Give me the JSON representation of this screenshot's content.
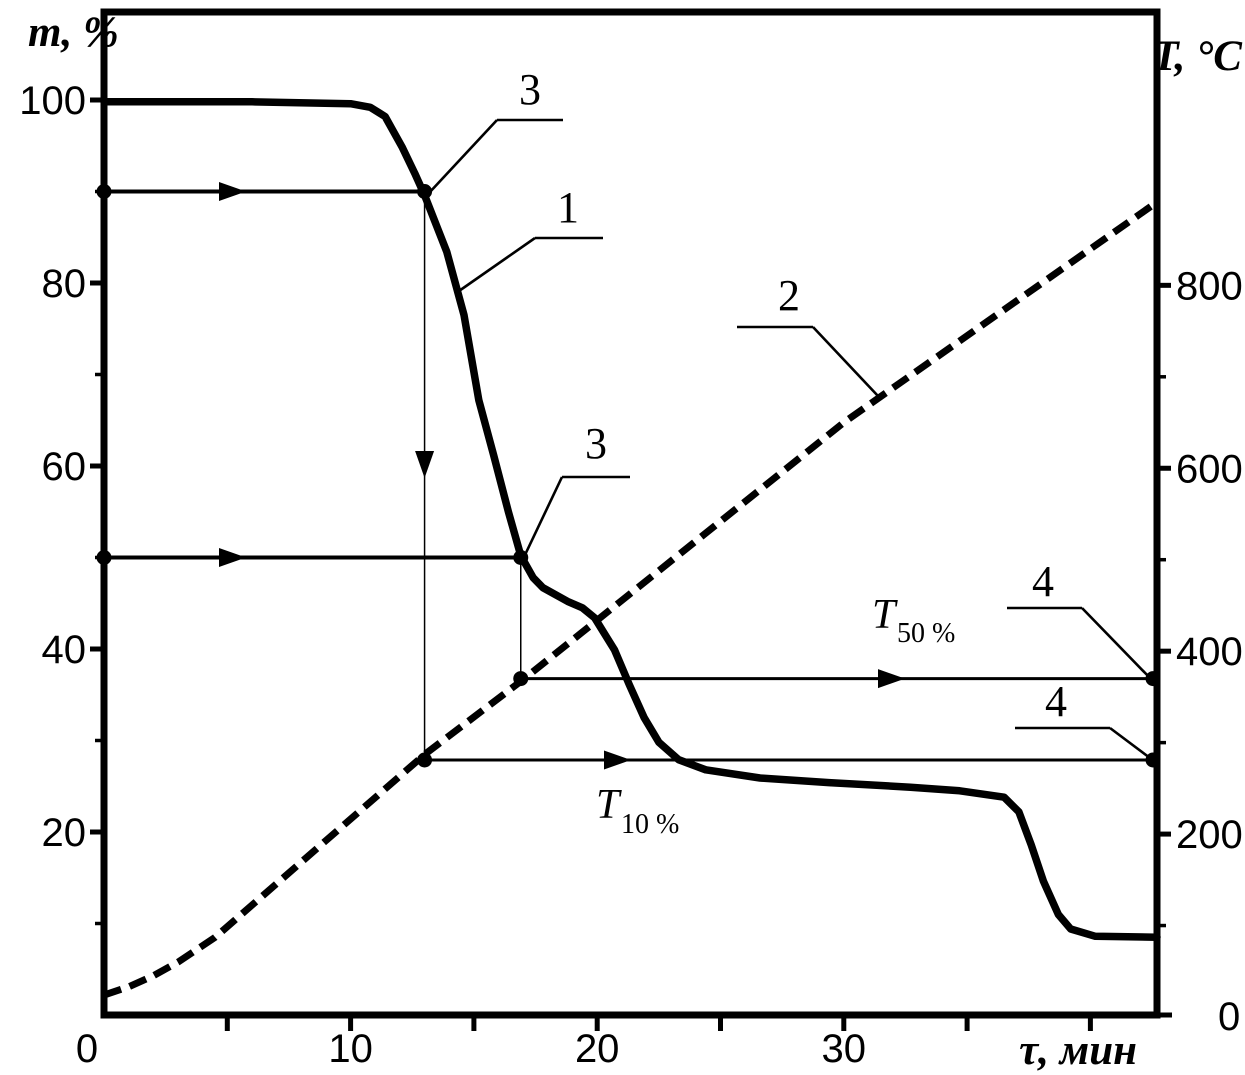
{
  "figure": {
    "background_color": "#ffffff",
    "ink_color": "#000000"
  },
  "chart_data": {
    "type": "line",
    "title": "",
    "xlabel": "τ, мин",
    "ylabel_left": "m, %",
    "ylabel_right": "T, °C",
    "x_range": [
      0,
      42.7
    ],
    "y_left_range": [
      0,
      100
    ],
    "y_right_range": [
      0,
      900
    ],
    "grid": false,
    "legend": "none",
    "axes": {
      "left": {
        "title": "m, %",
        "tick_labels": [
          "100",
          "80",
          "60",
          "40",
          "20"
        ],
        "tick_values": [
          100,
          80,
          60,
          40,
          20
        ],
        "minor_tick_values": [
          90,
          70,
          50,
          30,
          10
        ]
      },
      "right": {
        "title": "T, °C",
        "tick_labels": [
          "800",
          "600",
          "400",
          "200"
        ],
        "tick_values": [
          800,
          600,
          400,
          200
        ],
        "minor_tick_values": [
          700,
          500,
          300,
          100
        ],
        "zero_label": "0"
      },
      "bottom": {
        "title": "τ, мин",
        "tick_values": [
          5,
          10,
          15,
          20,
          25,
          30,
          35,
          40
        ],
        "tick_labels": [
          "10",
          "20",
          "30"
        ],
        "labeled_values": [
          10,
          20,
          30
        ],
        "origin_label": "0"
      }
    },
    "series": [
      {
        "id": "1",
        "name": "mass-curve",
        "line": "solid",
        "y_axis": "left",
        "points": [
          [
            0,
            99.8
          ],
          [
            6,
            99.8
          ],
          [
            10,
            99.6
          ],
          [
            10.8,
            99.2
          ],
          [
            11.4,
            98.2
          ],
          [
            12.1,
            94.8
          ],
          [
            12.6,
            92.0
          ],
          [
            13.0,
            89.6
          ],
          [
            13.9,
            83.4
          ],
          [
            14.6,
            76.5
          ],
          [
            15.2,
            67.2
          ],
          [
            15.8,
            61.2
          ],
          [
            16.4,
            55.0
          ],
          [
            16.9,
            50.2
          ],
          [
            17.4,
            47.8
          ],
          [
            17.8,
            46.7
          ],
          [
            18.8,
            45.2
          ],
          [
            19.4,
            44.5
          ],
          [
            19.9,
            43.4
          ],
          [
            20.7,
            39.9
          ],
          [
            21.3,
            36.1
          ],
          [
            21.9,
            32.5
          ],
          [
            22.5,
            29.8
          ],
          [
            23.3,
            27.9
          ],
          [
            24.4,
            26.8
          ],
          [
            26.6,
            25.9
          ],
          [
            29.4,
            25.4
          ],
          [
            32.7,
            24.9
          ],
          [
            34.7,
            24.5
          ],
          [
            36.5,
            23.8
          ],
          [
            37.1,
            22.2
          ],
          [
            37.6,
            18.6
          ],
          [
            38.1,
            14.6
          ],
          [
            38.7,
            11.0
          ],
          [
            39.2,
            9.4
          ],
          [
            40.2,
            8.6
          ],
          [
            42.7,
            8.5
          ]
        ]
      },
      {
        "id": "2",
        "name": "temperature-curve",
        "line": "dashed",
        "y_axis": "right",
        "points": [
          [
            0,
            24
          ],
          [
            1,
            33
          ],
          [
            2,
            45
          ],
          [
            3,
            60
          ],
          [
            4.5,
            87
          ],
          [
            13,
            287
          ],
          [
            17,
            369
          ],
          [
            30,
            650
          ],
          [
            42.7,
            891
          ]
        ]
      }
    ],
    "annotations": {
      "markers": {
        "mass_10pct_loss": {
          "m_percent": 90,
          "tau_min": 13.0,
          "T_celsius": 281,
          "label_base": "T",
          "label_sub": "10 %"
        },
        "mass_50pct_loss": {
          "m_percent": 50,
          "tau_min": 16.9,
          "T_celsius": 370,
          "label_base": "T",
          "label_sub": "50 %"
        }
      },
      "callouts": [
        {
          "label": "3",
          "target": "point where mass curve crosses m = 90 %"
        },
        {
          "label": "1",
          "target": "mass curve"
        },
        {
          "label": "3",
          "target": "point where mass curve crosses m = 50 %"
        },
        {
          "label": "2",
          "target": "temperature curve"
        },
        {
          "label": "4",
          "target": "T50% value on right axis"
        },
        {
          "label": "4",
          "target": "T10% value on right axis"
        }
      ]
    }
  }
}
